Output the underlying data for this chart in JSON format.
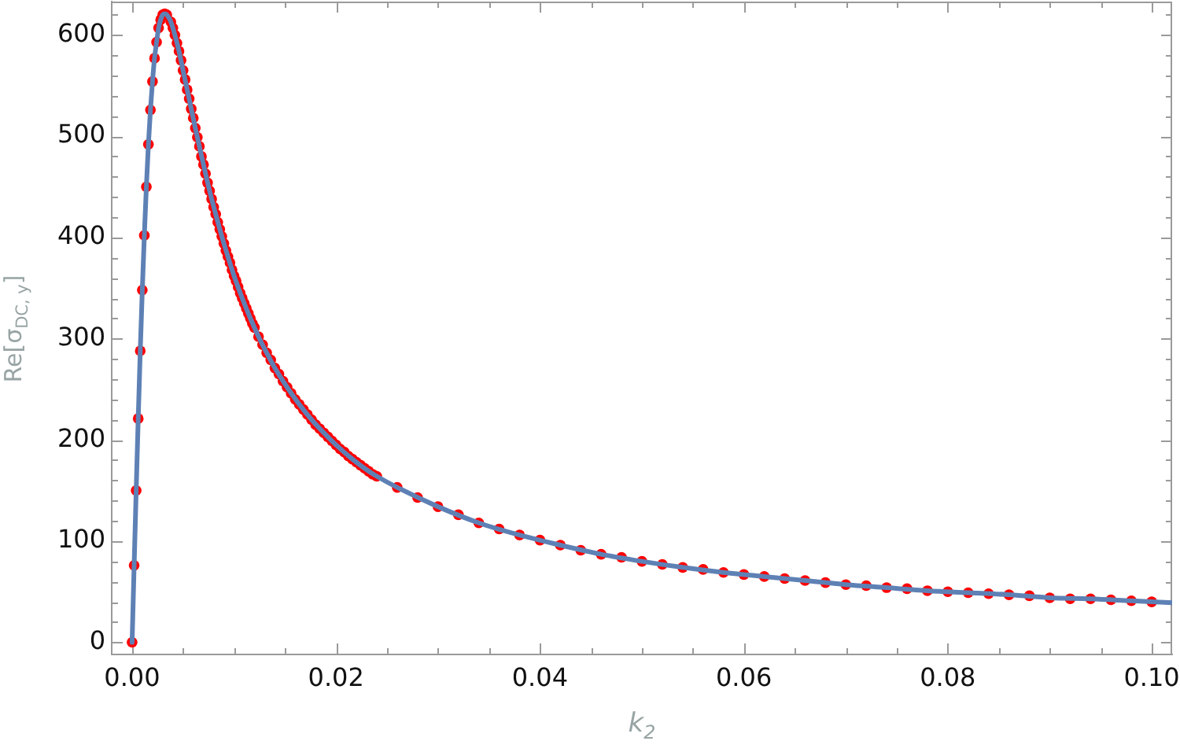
{
  "chart_data": {
    "type": "scatter",
    "xlabel": "k$_{2}$",
    "ylabel": "Re[σ$_{DC, y}$]",
    "xlim": [
      -0.002,
      0.102
    ],
    "ylim": [
      -12,
      633
    ],
    "xticks": [
      {
        "value": 0,
        "label": "0.00"
      },
      {
        "value": 0.005,
        "label": null
      },
      {
        "value": 0.01,
        "label": null
      },
      {
        "value": 0.015,
        "label": null
      },
      0.02,
      {
        "value": 0.025,
        "label": null
      },
      {
        "value": 0.03,
        "label": null
      },
      {
        "value": 0.035,
        "label": null
      },
      0.04,
      {
        "value": 0.045,
        "label": null
      },
      {
        "value": 0.05,
        "label": null
      },
      {
        "value": 0.055,
        "label": null
      },
      0.06,
      {
        "value": 0.065,
        "label": null
      },
      {
        "value": 0.07,
        "label": null
      },
      {
        "value": 0.075,
        "label": null
      },
      0.08,
      {
        "value": 0.085,
        "label": null
      },
      {
        "value": 0.09,
        "label": null
      },
      {
        "value": 0.095,
        "label": null
      },
      {
        "value": 0.1,
        "label": "0.10"
      }
    ],
    "yticks": [
      0,
      {
        "value": 20,
        "label": null
      },
      {
        "value": 40,
        "label": null
      },
      {
        "value": 60,
        "label": null
      },
      {
        "value": 80,
        "label": null
      },
      100,
      {
        "value": 120,
        "label": null
      },
      {
        "value": 140,
        "label": null
      },
      {
        "value": 160,
        "label": null
      },
      {
        "value": 180,
        "label": null
      },
      200,
      {
        "value": 220,
        "label": null
      },
      {
        "value": 240,
        "label": null
      },
      {
        "value": 260,
        "label": null
      },
      {
        "value": 280,
        "label": null
      },
      300,
      {
        "value": 320,
        "label": null
      },
      {
        "value": 340,
        "label": null
      },
      {
        "value": 360,
        "label": null
      },
      {
        "value": 380,
        "label": null
      },
      400,
      {
        "value": 420,
        "label": null
      },
      {
        "value": 440,
        "label": null
      },
      {
        "value": 460,
        "label": null
      },
      {
        "value": 480,
        "label": null
      },
      500,
      {
        "value": 520,
        "label": null
      },
      {
        "value": 540,
        "label": null
      },
      {
        "value": 560,
        "label": null
      },
      {
        "value": 580,
        "label": null
      },
      600,
      {
        "value": 620,
        "label": null
      }
    ],
    "series": [
      {
        "type": "line",
        "color": "#5e81b5",
        "line_style": "solid",
        "x": [
          0,
          0.0002,
          0.0004,
          0.0006,
          0.0008,
          0.001,
          0.0012,
          0.0014,
          0.0016,
          0.0018,
          0.002,
          0.0022,
          0.0024,
          0.0026,
          0.0028,
          0.003,
          0.0032,
          0.0034,
          0.0036,
          0.0038,
          0.0042,
          0.0046,
          0.005,
          0.0054,
          0.0058,
          0.0062,
          0.0066,
          0.007,
          0.0076,
          0.0082,
          0.0088,
          0.0094,
          0.01,
          0.0108,
          0.0116,
          0.0124,
          0.0132,
          0.014,
          0.0152,
          0.0164,
          0.0176,
          0.0188,
          0.02,
          0.0216,
          0.0232,
          0.024,
          0.026,
          0.03,
          0.034,
          0.038,
          0.042,
          0.046,
          0.05,
          0.054,
          0.058,
          0.062,
          0.066,
          0.07,
          0.074,
          0.078,
          0.082,
          0.086,
          0.09,
          0.094,
          0.098,
          0.102
        ],
        "values": [
          0,
          76,
          150,
          221,
          288,
          348,
          402,
          450,
          492,
          526,
          554,
          577,
          593,
          607,
          615,
          620,
          621,
          620,
          617,
          613,
          600,
          584,
          565,
          546,
          527,
          508,
          490,
          472,
          446,
          423,
          401,
          381,
          362,
          340,
          320,
          302,
          286,
          271,
          252,
          235,
          220,
          207,
          195,
          181,
          169,
          164,
          153,
          134,
          118,
          106,
          96,
          87,
          80,
          74,
          69,
          65,
          61,
          57,
          54,
          51,
          49,
          47,
          44,
          43,
          41,
          39
        ]
      },
      {
        "color": "#ff0000",
        "marker": "circle",
        "x": [
          0,
          0.0002,
          0.0004,
          0.0006,
          0.0008,
          0.001,
          0.0012,
          0.0014,
          0.0016,
          0.0018,
          0.002,
          0.0022,
          0.0024,
          0.0026,
          0.0028,
          0.003,
          0.0032,
          0.0034,
          0.0038,
          0.004,
          0.0042,
          0.0044,
          0.0046,
          0.0048,
          0.005,
          0.0052,
          0.0054,
          0.0056,
          0.0058,
          0.006,
          0.0062,
          0.0064,
          0.0066,
          0.0068,
          0.007,
          0.0072,
          0.0074,
          0.0076,
          0.0078,
          0.008,
          0.0082,
          0.0084,
          0.0086,
          0.0088,
          0.009,
          0.0092,
          0.0094,
          0.0096,
          0.0098,
          0.01,
          0.0102,
          0.0104,
          0.0106,
          0.0108,
          0.011,
          0.0112,
          0.0114,
          0.0116,
          0.0118,
          0.012,
          0.0124,
          0.0128,
          0.0132,
          0.0136,
          0.014,
          0.0144,
          0.0148,
          0.0152,
          0.0156,
          0.016,
          0.0164,
          0.0168,
          0.0172,
          0.0176,
          0.018,
          0.0184,
          0.0188,
          0.0192,
          0.0196,
          0.02,
          0.0204,
          0.0208,
          0.0212,
          0.0216,
          0.022,
          0.0224,
          0.0228,
          0.0232,
          0.0236,
          0.024,
          0.026,
          0.028,
          0.03,
          0.032,
          0.034,
          0.036,
          0.038,
          0.04,
          0.042,
          0.044,
          0.046,
          0.048,
          0.05,
          0.052,
          0.054,
          0.056,
          0.058,
          0.06,
          0.062,
          0.064,
          0.066,
          0.068,
          0.07,
          0.072,
          0.074,
          0.076,
          0.078,
          0.08,
          0.082,
          0.084,
          0.086,
          0.088,
          0.09,
          0.092,
          0.094,
          0.096,
          0.098,
          0.1
        ],
        "values": [
          0,
          76,
          150,
          221,
          288,
          348,
          402,
          450,
          492,
          526,
          554,
          577,
          593,
          607,
          615,
          620,
          621,
          620,
          613,
          607,
          600,
          592,
          584,
          575,
          565,
          556,
          546,
          537,
          527,
          518,
          508,
          499,
          490,
          480,
          472,
          463,
          454,
          446,
          438,
          430,
          423,
          415,
          408,
          401,
          394,
          387,
          381,
          375,
          368,
          362,
          357,
          351,
          345,
          340,
          335,
          330,
          325,
          320,
          315,
          311,
          302,
          294,
          286,
          279,
          271,
          265,
          258,
          252,
          246,
          240,
          235,
          230,
          225,
          220,
          215,
          211,
          207,
          203,
          199,
          195,
          191,
          188,
          184,
          181,
          178,
          175,
          172,
          169,
          166,
          164,
          153,
          143,
          134,
          126,
          118,
          112,
          106,
          101,
          96,
          91,
          87,
          84,
          80,
          77,
          74,
          72,
          69,
          67,
          65,
          63,
          61,
          59,
          57,
          56,
          54,
          53,
          51,
          50,
          49,
          48,
          47,
          46,
          44,
          43,
          43,
          42,
          41,
          40
        ]
      }
    ]
  }
}
